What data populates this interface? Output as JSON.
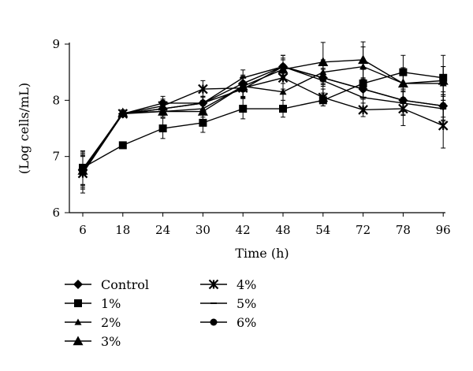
{
  "chart_data": {
    "type": "line",
    "title": "",
    "xlabel": "Time (h)",
    "ylabel": "(Log cells/mL)",
    "categories": [
      "6",
      "18",
      "24",
      "30",
      "42",
      "48",
      "54",
      "72",
      "78",
      "96"
    ],
    "ylim": [
      6,
      9
    ],
    "yticks": [
      "6",
      "7",
      "8",
      "9"
    ],
    "grid": false,
    "legend_position": "bottom-left",
    "series": [
      {
        "name": "Control",
        "marker": "diamond",
        "values": [
          6.75,
          7.76,
          7.85,
          7.95,
          8.3,
          8.6,
          8.4,
          8.2,
          8.0,
          7.9
        ],
        "errors": [
          0.25,
          0.04,
          0.1,
          0.12,
          0.12,
          0.12,
          0.1,
          0.18,
          0.25,
          0.25
        ]
      },
      {
        "name": "1%",
        "marker": "square",
        "values": [
          6.8,
          7.2,
          7.5,
          7.6,
          7.85,
          7.85,
          8.0,
          8.3,
          8.5,
          8.4
        ],
        "errors": [
          0.3,
          0.04,
          0.18,
          0.17,
          0.18,
          0.15,
          0.1,
          0.25,
          0.3,
          0.4
        ]
      },
      {
        "name": "2%",
        "marker": "triangle-small",
        "values": [
          6.72,
          7.76,
          7.8,
          7.85,
          8.25,
          8.15,
          8.5,
          8.6,
          8.3,
          8.3
        ],
        "errors": [
          0.3,
          0.05,
          0.1,
          0.15,
          0.2,
          0.25,
          0.22,
          0.35,
          0.25,
          0.3
        ]
      },
      {
        "name": "3%",
        "marker": "triangle",
        "values": [
          6.75,
          7.78,
          7.8,
          7.8,
          8.25,
          8.55,
          8.68,
          8.72,
          8.3,
          8.35
        ],
        "errors": [
          0.3,
          0.05,
          0.1,
          0.15,
          0.18,
          0.25,
          0.35,
          0.32,
          0.28,
          0.25
        ]
      },
      {
        "name": "4%",
        "marker": "asterisk",
        "values": [
          6.7,
          7.76,
          7.9,
          8.2,
          8.22,
          8.4,
          8.05,
          7.83,
          7.85,
          7.55
        ],
        "errors": [
          0.35,
          0.04,
          0.12,
          0.15,
          0.18,
          0.2,
          0.15,
          0.12,
          0.3,
          0.4
        ]
      },
      {
        "name": "5%",
        "marker": "dash",
        "values": [
          6.72,
          7.76,
          7.85,
          7.95,
          8.4,
          8.6,
          8.35,
          8.05,
          7.95,
          7.85
        ],
        "errors": [
          0.3,
          0.04,
          0.12,
          0.12,
          0.14,
          0.2,
          0.22,
          0.2,
          0.22,
          0.22
        ]
      },
      {
        "name": "6%",
        "marker": "circle",
        "values": [
          6.78,
          7.76,
          7.95,
          7.95,
          8.2,
          8.6,
          8.4,
          8.2,
          8.0,
          7.9
        ],
        "errors": [
          0.3,
          0.04,
          0.12,
          0.12,
          0.14,
          0.15,
          0.15,
          0.18,
          0.2,
          0.2
        ]
      }
    ]
  }
}
